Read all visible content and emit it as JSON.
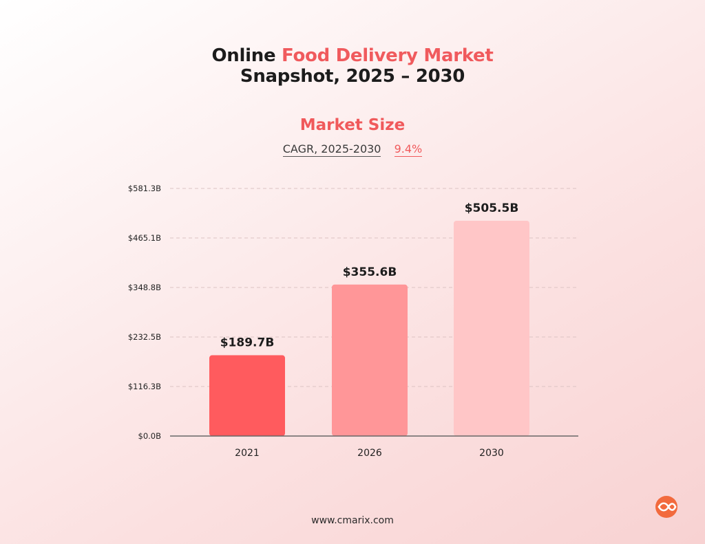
{
  "title": {
    "line1_prefix": "Online ",
    "line1_accent": "Food Delivery Market",
    "line2": "Snapshot, 2025 – 2030"
  },
  "subtitle": "Market Size",
  "cagr": {
    "label": "CAGR, 2025-2030",
    "value": "9.4%"
  },
  "footer": {
    "website": "www.cmarix.com"
  },
  "logo": {
    "icon": "cmarix-logo-icon",
    "color": "#f26a3d"
  },
  "chart_data": {
    "type": "bar",
    "categories": [
      "2021",
      "2026",
      "2030"
    ],
    "values": [
      189.7,
      355.6,
      505.5
    ],
    "value_labels": [
      "$189.7B",
      "$355.6B",
      "$505.5B"
    ],
    "bar_colors": [
      "#ff5b5e",
      "#ff9698",
      "#ffc6c7"
    ],
    "yticks": [
      0,
      116.3,
      232.5,
      348.8,
      465.1,
      581.3
    ],
    "ytick_labels": [
      "$0.0B",
      "$116.3B",
      "$232.5B",
      "$348.8B",
      "$465.1B",
      "$581.3B"
    ],
    "ylim": [
      0,
      581.3
    ],
    "grid": true,
    "xlabel": "",
    "ylabel": ""
  }
}
